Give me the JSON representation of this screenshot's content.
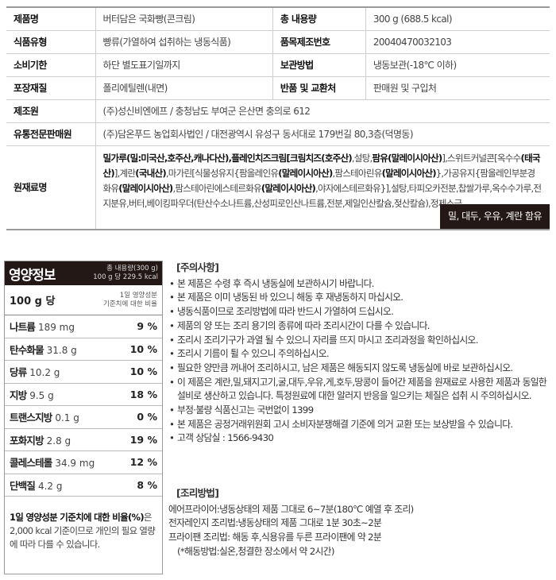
{
  "product_table": {
    "rows": [
      {
        "label": "제품명",
        "value": "버터담은 국화빵(콘크림)",
        "label2": "총 내용량",
        "value2": "300 g (688.5 kcal)"
      },
      {
        "label": "식품유형",
        "value": "빵류(가열하여 섭취하는 냉동식품)",
        "label2": "품목제조번호",
        "value2": "20040470032103"
      },
      {
        "label": "소비기한",
        "value": "하단 별도표기일까지",
        "label2": "보관방법",
        "value2": "냉동보관(-18℃ 이하)"
      },
      {
        "label": "포장재질",
        "value": "폴리에틸렌(내면)",
        "label2": "반품 및 교환처",
        "value2": "판매원 및 구입처"
      },
      {
        "label": "제조원",
        "value": "(주)성신비엔에프 / 충청남도 부여군 은산면 충의로 612"
      },
      {
        "label": "유통전문판매원",
        "value": "(주)담온푸드 농업회사법인 / 대전광역시 유성구 동서대로 179번길 80,3층(덕명동)"
      }
    ],
    "ingredients_label": "원재료명",
    "ingredients": [
      {
        "t": "밀가루(밀:미국산,호주산,캐나다산),플레인치즈크림[크림치즈(호주산)",
        "b": true
      },
      {
        "t": ",설탕,",
        "b": false
      },
      {
        "t": "팜유(말레이시아산)",
        "b": true
      },
      {
        "t": "],스위트커널콘[옥수수",
        "b": false
      },
      {
        "t": "(태국산)",
        "b": true
      },
      {
        "t": "],계란",
        "b": false
      },
      {
        "t": "(국내산)",
        "b": true
      },
      {
        "t": ",마가린[식물성유지{팜올레인유",
        "b": false
      },
      {
        "t": "(말레이시아산)",
        "b": true
      },
      {
        "t": ",팜스테아린유",
        "b": false
      },
      {
        "t": "(말레이시아산)",
        "b": true
      },
      {
        "t": "},가공유지{팜올레인부분경화유",
        "b": false
      },
      {
        "t": "(말레이시아산)",
        "b": true
      },
      {
        "t": ",팜스테아린에스테르화유",
        "b": false
      },
      {
        "t": "(말레이시아산)",
        "b": true
      },
      {
        "t": ",야자에스테르화유}],설탕,타피오카전분,찹쌀가루,옥수수가루,전지분유,버터,베이킹파우더(탄산수소나트륨,산성피로인산나트륨,전분,제일인산칼슘,젖산칼슘),정제소금",
        "b": false
      }
    ],
    "allergy": "밀, 대두, 우유, 계란 함유"
  },
  "nutrition": {
    "title": "영양정보",
    "total": "총 내용량(300 g)",
    "per_kcal": "100 g 당 229.5 kcal",
    "per": "100 g 당",
    "ratio_label_1": "1일 영양성분",
    "ratio_label_2": "기준치에 대한 비율",
    "rows": [
      {
        "name": "나트륨",
        "amount": "189 mg",
        "pct": "9 %"
      },
      {
        "name": "탄수화물",
        "amount": "31.8 g",
        "pct": "10 %"
      },
      {
        "name": "당류",
        "amount": "10.2 g",
        "pct": "10 %"
      },
      {
        "name": "지방",
        "amount": "9.5 g",
        "pct": "18 %"
      },
      {
        "name": "트랜스지방",
        "amount": "0.1 g",
        "pct": "0 %"
      },
      {
        "name": "포화지방",
        "amount": "2.8 g",
        "pct": "19 %"
      },
      {
        "name": "콜레스테롤",
        "amount": "34.9 mg",
        "pct": "12 %"
      },
      {
        "name": "단백질",
        "amount": "4.2 g",
        "pct": "8 %"
      }
    ],
    "note_bold": "1일 영양성분 기준치에 대한 비율(%)",
    "note": "은 2,000 kcal 기준이므로 개인의 필요 열량에 따라 다를 수 있습니다."
  },
  "cautions": {
    "title": "[주의사항]",
    "items": [
      "본 제품은 수령 후 즉시 냉동실에 보관하시기 바랍니다.",
      "본 제품은 이미 냉동된 바 있으니 해동 후 재냉동하지 마십시오.",
      "냉동식품이므로 조리방법에 따라 반드시 가열하여 드십시오.",
      "제품의 양 또는 조리 용기의 종류에 따라 조리시간이 다를 수 있습니다.",
      "조리시 조리기구가 과열 될 수 있으니 자리를 뜨지 마시고 조리과정을 확인하십시오.",
      "조리시 기름이 튈 수 있으니 주의하십시오.",
      "필요한 양만큼 꺼내어 조리하시고, 남은 제품은 해동되지 않도록 냉동실에 바로 보관하십시오.",
      "이 제품은 계란,밀,돼지고기,굴,대두,우유,게,호두,땅콩이 들어간 제품을 원재료로 사용한 제품과 동일한 설비로 생산하고 있습니다. 특정원료에 대한 알러지 반응을 일으키는 체질은 섭취 시 주의하십시오.",
      "부정·불량 식품신고는 국번없이 1399",
      "본 제품은 공정거래위원회 고시 소비자분쟁해결 기준에 의거 교환 또는 보상받을 수 있습니다.",
      "고객 상담실 : 1566-9430"
    ]
  },
  "cooking": {
    "title": "[조리방법]",
    "items": [
      "에어프라이어:냉동상태의 제품 그대로 6~7분(180℃ 예열 후 조리)",
      "전자레인지 조리법:냉동상태의 제품 그대로 1분 30초~2분",
      "프라이팬 조리법: 해동 후,식용유를 두른 프라이팬에 약 2분"
    ],
    "sub": "(*해동방법:실온,청결한 장소에서 약 2시간)"
  }
}
